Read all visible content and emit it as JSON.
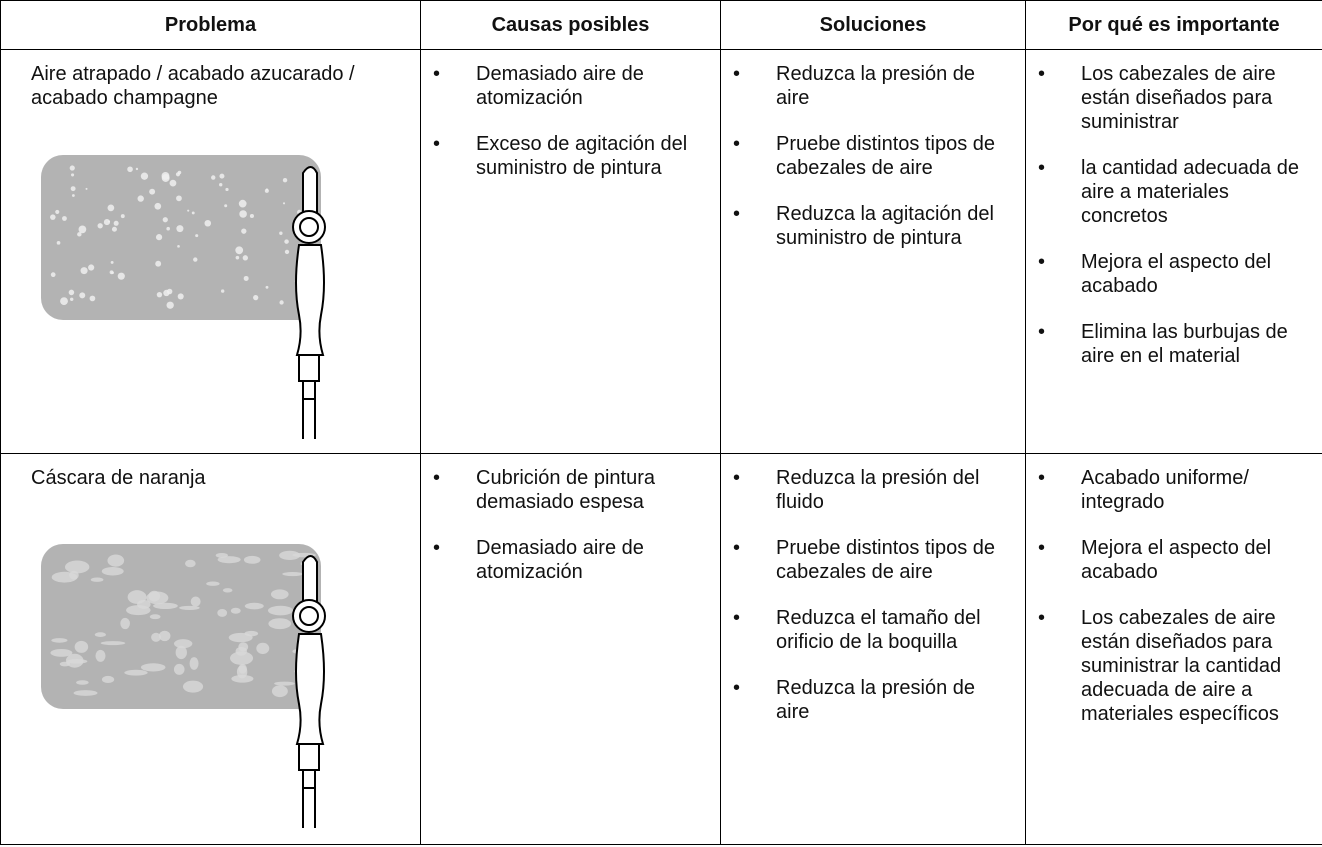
{
  "table": {
    "headers": [
      "Problema",
      "Causas posibles",
      "Soluciones",
      "Por qué es importante"
    ],
    "rows": [
      {
        "problem": "Aire atrapado / acabado azucarado / acabado champagne",
        "causes": [
          "Demasiado aire de atomización",
          "Exceso de agitación del suministro de pintura"
        ],
        "solutions": [
          "Reduzca la presión de aire",
          "Pruebe distintos tipos de cabezales de aire",
          "Reduzca la agitación del suministro de pintura"
        ],
        "importance": [
          "Los cabezales de aire están diseñados para suministrar",
          "la cantidad adecuada de aire a materiales concretos",
          "Mejora el aspecto del acabado",
          "Elimina las burbujas de aire en el material"
        ]
      },
      {
        "problem": "Cáscara de naranja",
        "causes": [
          "Cubrición de pintura demasiado espesa",
          "Demasiado aire de atomización"
        ],
        "solutions": [
          "Reduzca la presión del fluido",
          "Pruebe distintos tipos de cabezales de aire",
          "Reduzca el tamaño del orificio de la boquilla",
          "Reduzca la presión de aire"
        ],
        "importance": [
          "Acabado uniforme/ integrado",
          "Mejora el aspecto del acabado",
          "Los cabezales de aire están diseñados para suministrar la cantidad adecuada de aire a materiales específicos"
        ]
      }
    ]
  }
}
